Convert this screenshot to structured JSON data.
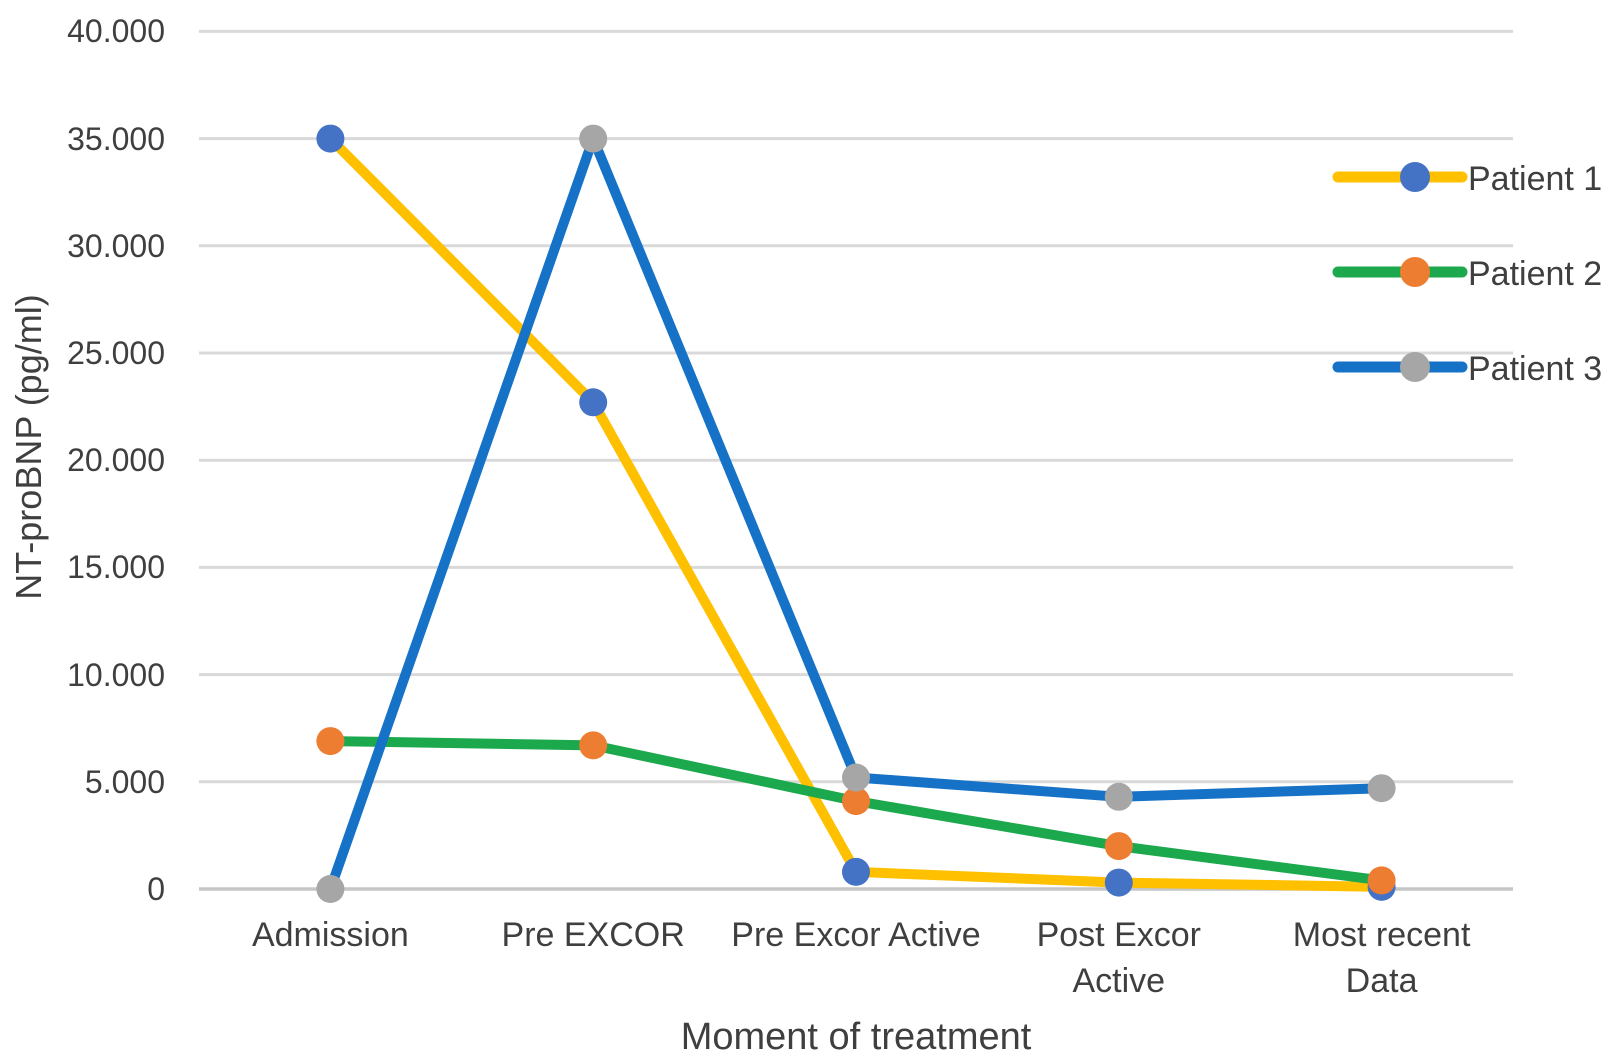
{
  "chart_data": {
    "type": "line",
    "title": "",
    "xlabel": "Moment of treatment",
    "ylabel": "NT-proBNP (pg/ml)",
    "categories": [
      "Admission",
      "Pre EXCOR",
      "Pre Excor Active",
      "Post Excor\nActive",
      "Most recent\nData"
    ],
    "series": [
      {
        "name": "Patient 1",
        "line_color": "#FFC000",
        "marker_color": "#4472C4",
        "values": [
          35000,
          22700,
          800,
          300,
          100
        ]
      },
      {
        "name": "Patient 2",
        "line_color": "#1CA94E",
        "marker_color": "#ED7D31",
        "values": [
          6900,
          6700,
          4100,
          2000,
          400
        ]
      },
      {
        "name": "Patient 3",
        "line_color": "#1572C6",
        "marker_color": "#A6A6A6",
        "values": [
          0,
          35000,
          5200,
          4300,
          4700
        ]
      }
    ],
    "y_axis": {
      "min": 0,
      "max": 40000,
      "step": 5000,
      "tick_labels": [
        "0",
        "5.000",
        "10.000",
        "15.000",
        "20.000",
        "25.000",
        "30.000",
        "35.000",
        "40.000"
      ]
    },
    "ylim": [
      0,
      40000
    ],
    "grid": true,
    "legend_position": "right",
    "colors": {
      "gridline": "#D9D9D9",
      "axis_line": "#C6C6C6",
      "text": "#3F3F3F"
    }
  }
}
